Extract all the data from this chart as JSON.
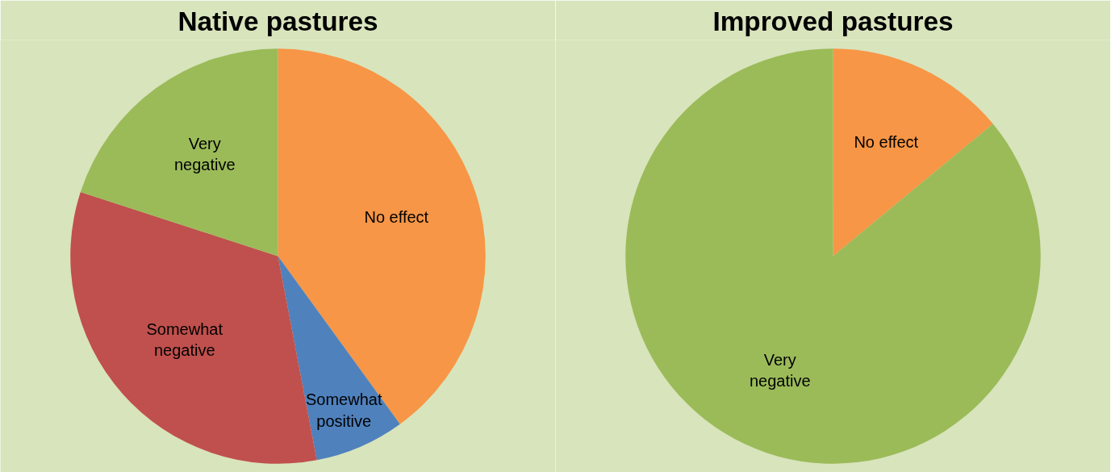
{
  "chart_data": [
    {
      "type": "pie",
      "title": "Native pastures",
      "categories": [
        "No effect",
        "Somewhat positive",
        "Somewhat negative",
        "Very negative"
      ],
      "values": [
        40,
        7,
        33,
        20
      ],
      "colors": [
        "#f79646",
        "#4f81bd",
        "#c0504d",
        "#9bbb59"
      ]
    },
    {
      "type": "pie",
      "title": "Improved pastures",
      "categories": [
        "No effect",
        "Very negative"
      ],
      "values": [
        14,
        86
      ],
      "colors": [
        "#f79646",
        "#9bbb59"
      ]
    }
  ]
}
